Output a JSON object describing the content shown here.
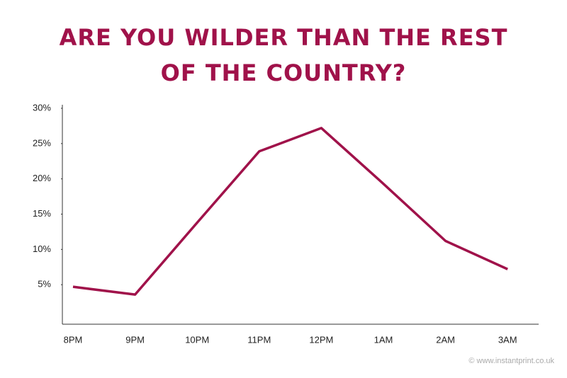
{
  "chart_data": {
    "type": "line",
    "title": "ARE YOU WILDER THAN THE REST OF THE COUNTRY?",
    "source": "© www.instantprint.co.uk",
    "categories": [
      "8PM",
      "9PM",
      "10PM",
      "11PM",
      "12PM",
      "1AM",
      "2AM",
      "3AM"
    ],
    "values": [
      4.7,
      3.6,
      13.8,
      23.9,
      27.2,
      19.3,
      11.2,
      7.2
    ],
    "color": "#a0124a",
    "ylim": [
      -0.6,
      30.5
    ],
    "yticks": [
      {
        "value": 5,
        "label": "5%"
      },
      {
        "value": 10,
        "label": "10%"
      },
      {
        "value": 15,
        "label": "15%"
      },
      {
        "value": 20,
        "label": "20%"
      },
      {
        "value": 25,
        "label": "25%"
      },
      {
        "value": 30,
        "label": "30%"
      }
    ],
    "grid": false
  }
}
